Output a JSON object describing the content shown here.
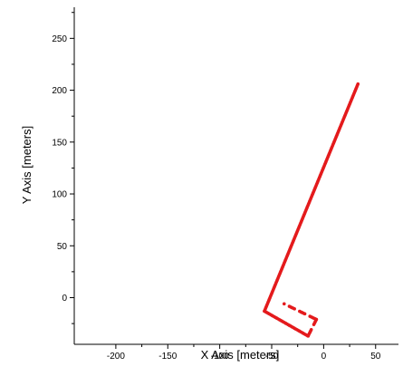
{
  "chart_data": {
    "type": "scatter",
    "title": "",
    "xlabel": "X Axis [meters]",
    "ylabel": "Y Axis [meters]",
    "xlim": [
      -240,
      72
    ],
    "ylim": [
      -45,
      280
    ],
    "x_ticks": [
      -200,
      -150,
      -100,
      -50,
      0,
      50
    ],
    "y_ticks": [
      0,
      50,
      100,
      150,
      200,
      250
    ],
    "x_tick_labels": [
      "-200",
      "-150",
      "-100",
      "-50",
      "0",
      "50"
    ],
    "y_tick_labels": [
      "0",
      "50",
      "100",
      "150",
      "200",
      "250"
    ],
    "grid": false,
    "legend": "none",
    "colors": {
      "series": "#e41a1c",
      "axis": "#000000"
    },
    "series": [
      {
        "segments": [
          {
            "from": [
              33,
              206
            ],
            "to": [
              -57,
              -13
            ],
            "style": "solid"
          },
          {
            "from": [
              -57,
              -13
            ],
            "to": [
              -15,
              -37
            ],
            "style": "solid"
          },
          {
            "from": [
              -15,
              -37
            ],
            "to": [
              -7,
              -21
            ],
            "style": "dashed"
          },
          {
            "from": [
              -7,
              -21
            ],
            "to": [
              -38,
              -6
            ],
            "style": "dashed"
          }
        ]
      }
    ]
  }
}
